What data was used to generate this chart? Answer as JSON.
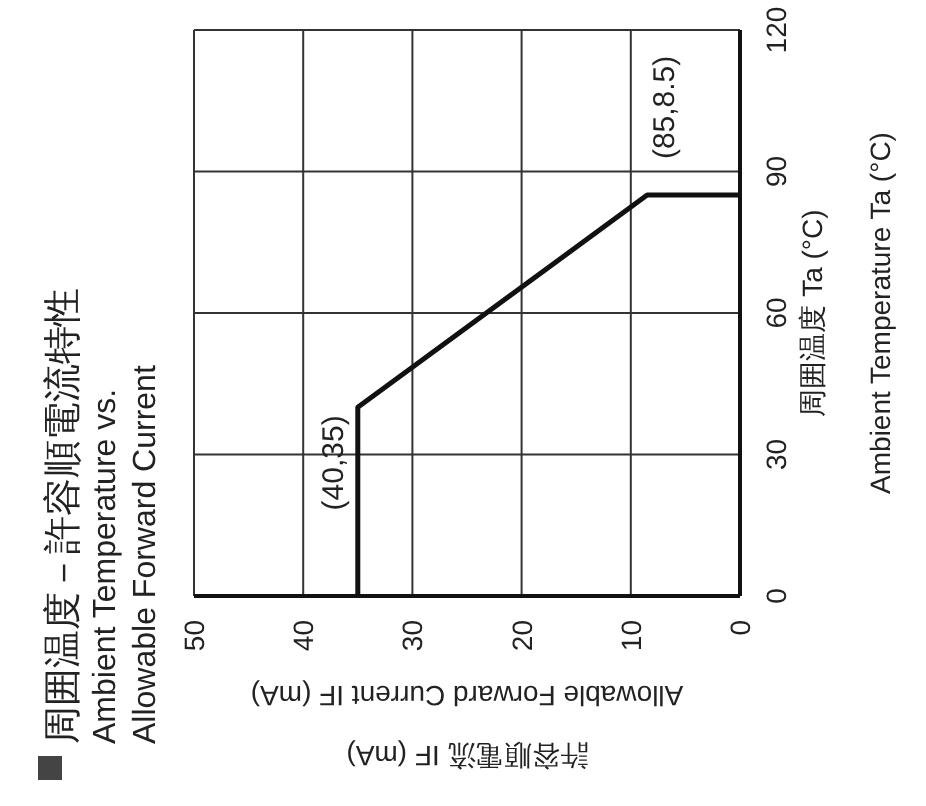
{
  "chart_data": {
    "type": "line",
    "title": "周囲温度－許容順電流特性",
    "subtitle": "Ambient Temperature vs.\nAllowable Forward Current",
    "xlabel": "許容順電流 IF (mA)\nAllowable Forward Current IF (mA)",
    "ylabel": "周囲温度 Ta (°C)\nAmbient Temperature Ta (°C)",
    "x": [
      35,
      35,
      8.5,
      0
    ],
    "series": [
      {
        "color": "#111111",
        "values": [
          0,
          40,
          85,
          85
        ]
      }
    ],
    "xlim": [
      50,
      0
    ],
    "xticks": [
      50,
      40,
      30,
      20,
      10,
      0
    ],
    "ylim": [
      0,
      120
    ],
    "yticks": [
      0,
      30,
      60,
      90,
      120
    ],
    "grid": true,
    "marker": "none",
    "line_style": "solid",
    "annotations": [
      {
        "text": "(40,35)",
        "x": 35,
        "y": 40
      },
      {
        "text": "(85,8.5)",
        "x": 8.5,
        "y": 85
      }
    ]
  }
}
